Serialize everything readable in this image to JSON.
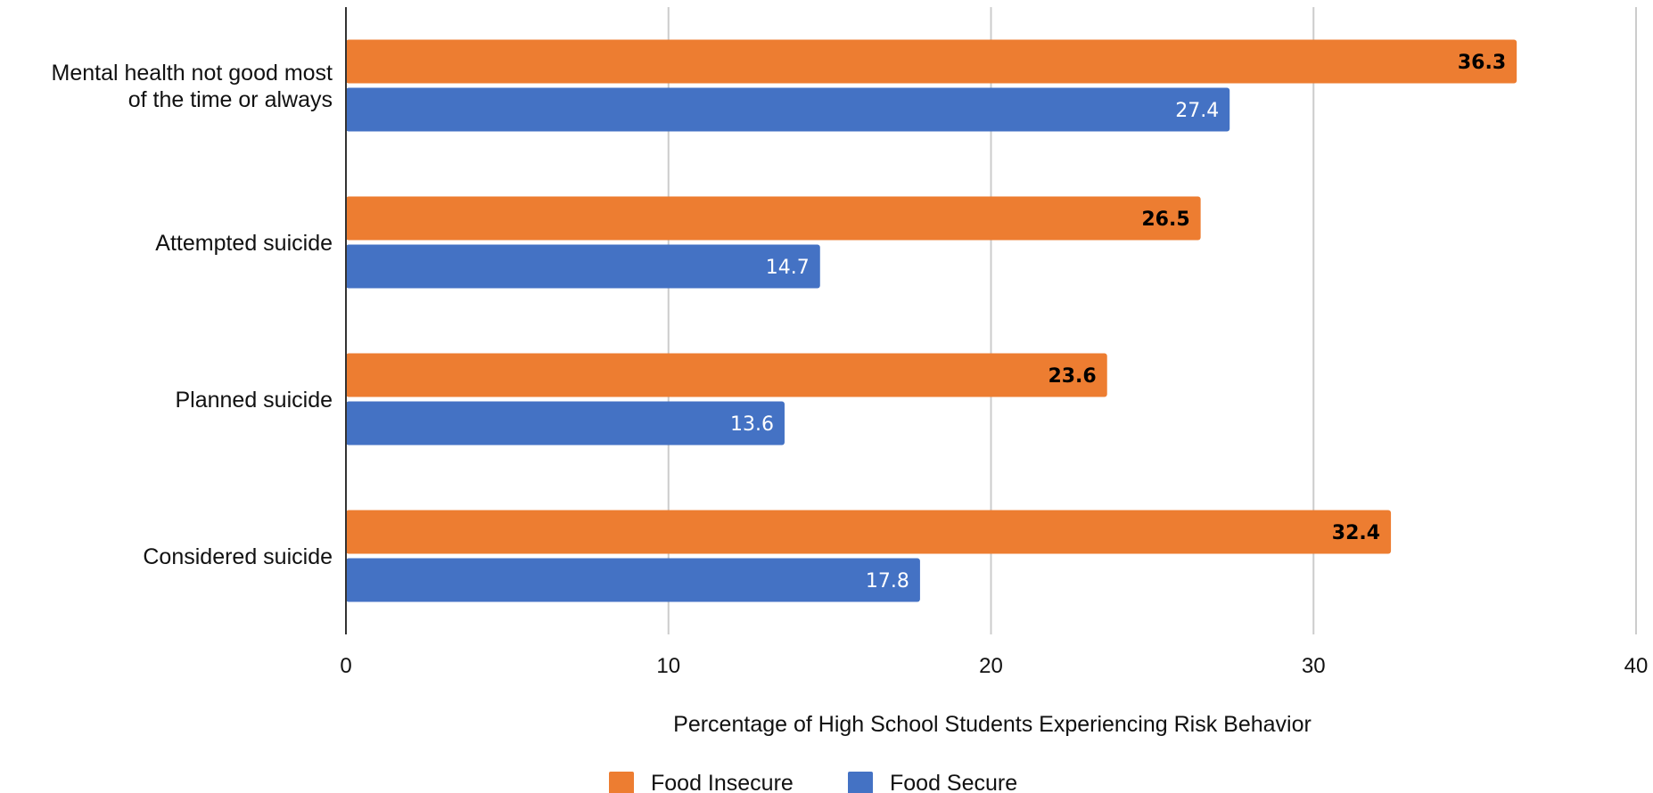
{
  "chart_data": {
    "type": "bar",
    "orientation": "horizontal",
    "categories": [
      [
        "Mental health not good most",
        "of the time or always"
      ],
      [
        "Attempted suicide"
      ],
      [
        "Planned suicide"
      ],
      [
        "Considered suicide"
      ]
    ],
    "series": [
      {
        "name": "Food Insecure",
        "color": "#ED7D31",
        "label_color": "#000000",
        "label_bold": true,
        "values": [
          36.3,
          26.5,
          23.6,
          32.4
        ]
      },
      {
        "name": "Food Secure",
        "color": "#4472C4",
        "label_color": "#ffffff",
        "label_bold": false,
        "values": [
          27.4,
          14.7,
          13.6,
          17.8
        ]
      }
    ],
    "xlim": [
      0,
      40
    ],
    "xticks": [
      0,
      10,
      20,
      30,
      40
    ],
    "xlabel": "Percentage of High School Students Experiencing Risk Behavior",
    "grid": true,
    "legend_position": "bottom"
  }
}
